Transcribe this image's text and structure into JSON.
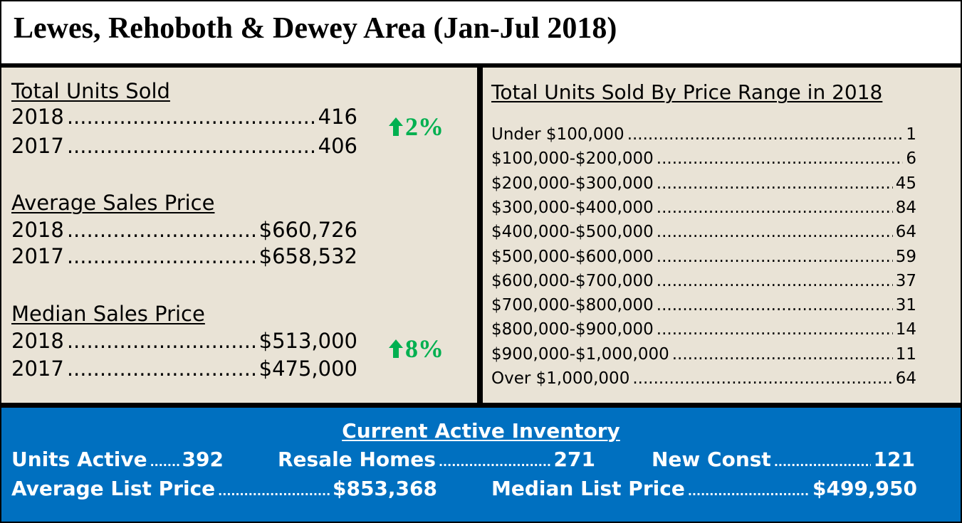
{
  "title": "Lewes, Rehoboth & Dewey Area (Jan-Jul 2018)",
  "left": {
    "total_units": {
      "heading": "Total Units Sold",
      "rows": [
        {
          "label": "2018",
          "value": "416"
        },
        {
          "label": "2017",
          "value": "406"
        }
      ],
      "change": "2%"
    },
    "average_price": {
      "heading": "Average Sales Price",
      "rows": [
        {
          "label": "2018",
          "value": "$660,726"
        },
        {
          "label": "2017",
          "value": "$658,532"
        }
      ]
    },
    "median_price": {
      "heading": "Median Sales Price",
      "rows": [
        {
          "label": "2018",
          "value": "$513,000"
        },
        {
          "label": "2017",
          "value": "$475,000"
        }
      ],
      "change": "8%"
    },
    "up_color": "#00b050"
  },
  "right": {
    "heading": "Total Units Sold By Price Range in 2018",
    "ranges": [
      {
        "label": "Under $100,000",
        "value": "1"
      },
      {
        "label": "$100,000-$200,000",
        "value": "6"
      },
      {
        "label": "$200,000-$300,000",
        "value": "45"
      },
      {
        "label": "$300,000-$400,000",
        "value": "84"
      },
      {
        "label": "$400,000-$500,000",
        "value": "64"
      },
      {
        "label": "$500,000-$600,000",
        "value": "59"
      },
      {
        "label": "$600,000-$700,000",
        "value": "37"
      },
      {
        "label": "$700,000-$800,000",
        "value": "31"
      },
      {
        "label": "$800,000-$900,000",
        "value": "14"
      },
      {
        "label": "$900,000-$1,000,000",
        "value": "11"
      },
      {
        "label": "Over $1,000,000",
        "value": "64"
      }
    ]
  },
  "inventory": {
    "heading": "Current Active Inventory",
    "units_active": {
      "label": "Units Active",
      "value": "392"
    },
    "resale_homes": {
      "label": "Resale Homes",
      "value": "271"
    },
    "new_const": {
      "label": "New Const",
      "value": "121"
    },
    "average_list": {
      "label": "Average List Price",
      "value": "$853,368"
    },
    "median_list": {
      "label": "Median List Price",
      "value": "$499,950"
    },
    "background_color": "#0070c0"
  }
}
